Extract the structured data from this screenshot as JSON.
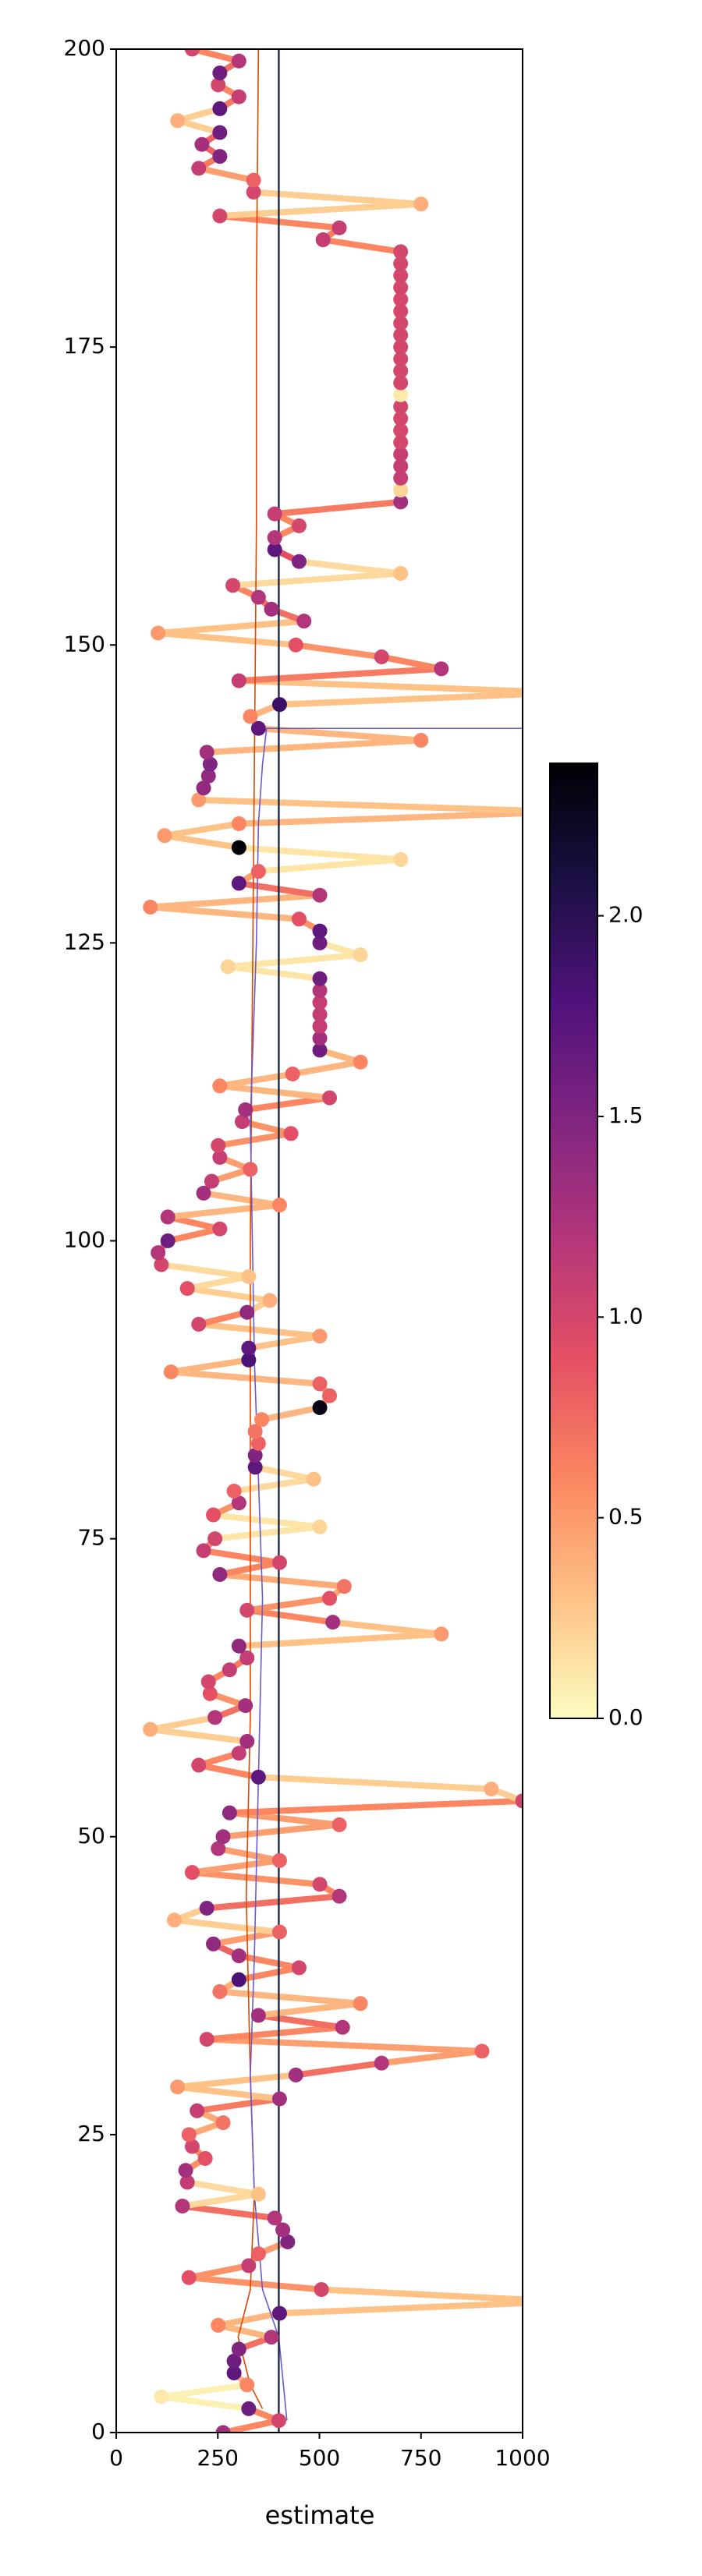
{
  "chart_data": {
    "type": "scatter-path",
    "xlabel": "estimate",
    "xlim": [
      0,
      1000
    ],
    "xticks": [
      0,
      250,
      500,
      750,
      1000
    ],
    "ylim": [
      0,
      200
    ],
    "yticks": [
      0,
      25,
      50,
      75,
      100,
      125,
      150,
      175,
      200
    ],
    "vline": {
      "x": 400,
      "color": "#1f2a44"
    },
    "colorbar": {
      "lim": [
        0,
        2.38
      ],
      "ticks": [
        {
          "value": 0,
          "label": "0.0"
        },
        0.5,
        {
          "value": 1,
          "label": "1.0"
        },
        1.5,
        {
          "value": 2,
          "label": "2.0"
        }
      ],
      "colormap": [
        "#fcfdbf",
        "#fec287",
        "#fb8761",
        "#e55064",
        "#b5367a",
        "#812581",
        "#4f127b",
        "#1c1044",
        "#000004"
      ]
    },
    "series": [
      {
        "x": [
          263,
          400,
          326,
          111,
          322,
          290,
          290,
          302,
          382,
          251,
          402,
          1100,
          505,
          179,
          326,
          350,
          422,
          410,
          390,
          163,
          350,
          175,
          171,
          219,
          187,
          179,
          263,
          199,
          402,
          151,
          442,
          653,
          900,
          223,
          557,
          350,
          601,
          255,
          302,
          450,
          302,
          239,
          402,
          143,
          223,
          549,
          501,
          187,
          402,
          251,
          263,
          549,
          279,
          1000,
          923,
          350,
          203,
          302,
          322,
          84,
          243,
          318,
          231,
          227,
          279,
          322,
          302,
          800,
          533,
          322,
          525,
          561,
          255,
          402,
          215,
          243,
          501,
          239,
          302,
          290,
          486,
          342,
          342,
          350,
          342,
          358,
          501,
          525,
          501,
          135,
          326,
          326,
          501,
          203,
          322,
          378,
          175,
          326,
          111,
          103,
          127,
          255,
          127,
          402,
          215,
          235,
          330,
          255,
          251,
          430,
          310,
          318,
          525,
          255,
          434,
          601,
          501,
          501,
          501,
          501,
          501,
          501,
          501,
          275,
          601,
          501,
          501,
          450,
          84,
          501,
          302,
          350,
          700,
          302,
          119,
          302,
          1100,
          203,
          215,
          227,
          231,
          223,
          750,
          350,
          330,
          402,
          1100,
          302,
          800,
          653,
          442,
          103,
          462,
          382,
          350,
          287,
          700,
          450,
          390,
          390,
          450,
          390,
          700,
          700,
          700,
          700,
          700,
          700,
          700,
          700,
          700,
          700,
          700,
          700,
          700,
          700,
          700,
          700,
          700,
          700,
          700,
          700,
          700,
          700,
          509,
          549,
          255,
          750,
          338,
          338,
          203,
          255,
          211,
          255,
          151,
          255,
          302,
          251,
          255,
          302,
          187
        ],
        "y": [
          0,
          1,
          2,
          3,
          4,
          5,
          6,
          7,
          8,
          9,
          10,
          11,
          12,
          13,
          14,
          15,
          16,
          17,
          18,
          19,
          20,
          21,
          22,
          23,
          24,
          25,
          26,
          27,
          28,
          29,
          30,
          31,
          32,
          33,
          34,
          35,
          36,
          37,
          38,
          39,
          40,
          41,
          42,
          43,
          44,
          45,
          46,
          47,
          48,
          49,
          50,
          51,
          52,
          53,
          54,
          55,
          56,
          57,
          58,
          59,
          60,
          61,
          62,
          63,
          64,
          65,
          66,
          67,
          68,
          69,
          70,
          71,
          72,
          73,
          74,
          75,
          76,
          77,
          78,
          79,
          80,
          81,
          82,
          83,
          84,
          85,
          86,
          87,
          88,
          89,
          90,
          91,
          92,
          93,
          94,
          95,
          96,
          97,
          98,
          99,
          100,
          101,
          102,
          103,
          104,
          105,
          106,
          107,
          108,
          109,
          110,
          111,
          112,
          113,
          114,
          115,
          116,
          117,
          118,
          119,
          120,
          121,
          122,
          123,
          124,
          125,
          126,
          127,
          128,
          129,
          130,
          131,
          132,
          133,
          134,
          135,
          136,
          137,
          138,
          139,
          140,
          141,
          142,
          143,
          144,
          145,
          146,
          147,
          148,
          149,
          150,
          151,
          152,
          153,
          154,
          155,
          156,
          157,
          158,
          159,
          160,
          161,
          162,
          163,
          164,
          165,
          166,
          167,
          168,
          169,
          170,
          171,
          172,
          173,
          174,
          175,
          176,
          177,
          178,
          179,
          180,
          181,
          182,
          183,
          184,
          185,
          186,
          187,
          188,
          189,
          190,
          191,
          192,
          193,
          194,
          195,
          196,
          197,
          198,
          199,
          200
        ],
        "c": [
          1.3,
          1.0,
          1.6,
          0.1,
          0.6,
          1.7,
          1.6,
          1.5,
          1.2,
          0.6,
          1.7,
          0.5,
          1.0,
          0.9,
          1.1,
          0.8,
          1.5,
          1.3,
          1.2,
          1.2,
          0.3,
          1.1,
          1.3,
          0.9,
          1.0,
          0.8,
          0.7,
          1.1,
          1.3,
          0.5,
          1.3,
          1.2,
          0.8,
          1.0,
          1.2,
          1.3,
          0.6,
          0.7,
          1.8,
          1.0,
          1.3,
          1.4,
          0.8,
          0.4,
          1.5,
          1.2,
          1.0,
          0.9,
          0.8,
          1.2,
          1.3,
          0.8,
          1.4,
          1.0,
          0.4,
          1.7,
          1.0,
          1.1,
          1.3,
          0.4,
          1.2,
          1.3,
          0.9,
          1.0,
          1.1,
          1.1,
          1.4,
          0.5,
          1.3,
          1.0,
          0.9,
          0.7,
          1.4,
          1.0,
          1.1,
          1.0,
          0.2,
          0.9,
          1.2,
          0.8,
          0.3,
          1.7,
          1.5,
          0.8,
          0.7,
          0.6,
          2.3,
          0.8,
          0.8,
          0.6,
          1.8,
          1.7,
          0.5,
          1.0,
          1.4,
          0.4,
          0.9,
          0.3,
          1.0,
          1.2,
          1.6,
          1.0,
          1.2,
          0.6,
          1.3,
          1.1,
          0.8,
          1.1,
          1.0,
          0.9,
          1.1,
          1.3,
          1.0,
          0.6,
          0.8,
          0.6,
          1.6,
          1.3,
          1.1,
          1.1,
          1.1,
          1.2,
          1.6,
          0.2,
          0.2,
          1.6,
          1.7,
          0.9,
          0.6,
          1.2,
          1.7,
          0.8,
          0.2,
          2.4,
          0.5,
          0.6,
          0.6,
          0.5,
          1.4,
          1.4,
          1.5,
          1.3,
          0.6,
          1.7,
          0.6,
          1.9,
          0.5,
          1.1,
          1.2,
          1.0,
          0.9,
          0.5,
          1.2,
          1.3,
          1.2,
          1.0,
          0.3,
          1.5,
          1.7,
          1.2,
          1.0,
          1.1,
          1.3,
          0.2,
          1.1,
          1.1,
          1.1,
          1.0,
          1.0,
          1.0,
          1.0,
          0.1,
          1.0,
          1.0,
          1.0,
          1.0,
          1.0,
          1.0,
          1.0,
          1.0,
          1.0,
          1.0,
          1.0,
          1.0,
          1.1,
          1.1,
          1.0,
          0.4,
          1.0,
          0.8,
          1.1,
          1.5,
          1.3,
          1.6,
          0.4,
          1.7,
          1.1,
          1.0,
          1.6,
          1.2,
          1.0
        ]
      }
    ],
    "ref_lines": [
      {
        "color": "#d94801",
        "x": [
          360,
          330,
          300,
          330,
          340,
          330,
          320,
          330,
          330,
          330,
          335,
          340,
          345,
          345,
          350
        ],
        "y": [
          2,
          4,
          8,
          12,
          20,
          30,
          45,
          60,
          80,
          100,
          120,
          140,
          160,
          180,
          200
        ]
      },
      {
        "color": "#6a5acd",
        "x": [
          420,
          400,
          360,
          340,
          330,
          340,
          350,
          360,
          340,
          330,
          345,
          350,
          360,
          370,
          1100
        ],
        "y": [
          1,
          8,
          12,
          20,
          30,
          40,
          55,
          70,
          90,
          110,
          125,
          135,
          140,
          143,
          143
        ]
      }
    ]
  }
}
